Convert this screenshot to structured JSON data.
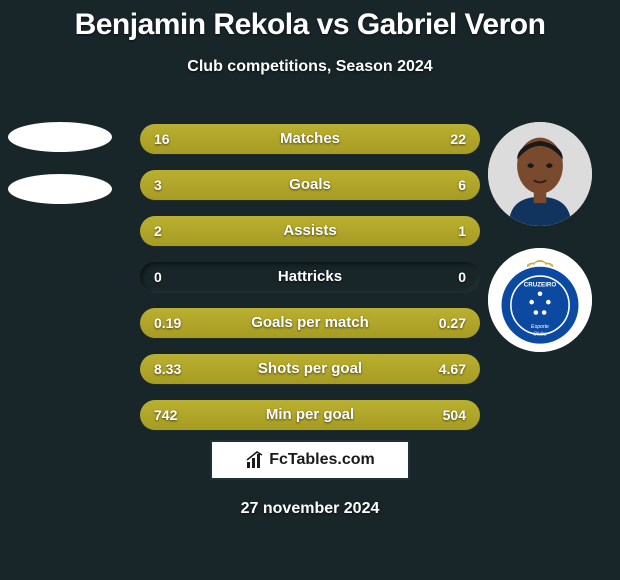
{
  "title": "Benjamin Rekola vs Gabriel Veron",
  "subtitle": "Club competitions, Season 2024",
  "date": "27 november 2024",
  "brand": "FcTables.com",
  "colors": {
    "background": "#182629",
    "bar_fill": "#a79c23",
    "text": "#ffffff",
    "brand_box_bg": "#ffffff",
    "brand_box_border": "#1d3138"
  },
  "club_badge_right": {
    "name": "Cruzeiro Esporte Clube",
    "primary": "#0b4aa0",
    "secondary": "#ffffff"
  },
  "stats": [
    {
      "label": "Matches",
      "left_text": "16",
      "right_text": "22",
      "left_pct": 42.1,
      "right_pct": 57.9
    },
    {
      "label": "Goals",
      "left_text": "3",
      "right_text": "6",
      "left_pct": 33.3,
      "right_pct": 66.7
    },
    {
      "label": "Assists",
      "left_text": "2",
      "right_text": "1",
      "left_pct": 66.7,
      "right_pct": 33.3
    },
    {
      "label": "Hattricks",
      "left_text": "0",
      "right_text": "0",
      "left_pct": 0,
      "right_pct": 0
    },
    {
      "label": "Goals per match",
      "left_text": "0.19",
      "right_text": "0.27",
      "left_pct": 41.3,
      "right_pct": 58.7
    },
    {
      "label": "Shots per goal",
      "left_text": "8.33",
      "right_text": "4.67",
      "left_pct": 64.1,
      "right_pct": 35.9
    },
    {
      "label": "Min per goal",
      "left_text": "742",
      "right_text": "504",
      "left_pct": 59.6,
      "right_pct": 40.4
    }
  ]
}
